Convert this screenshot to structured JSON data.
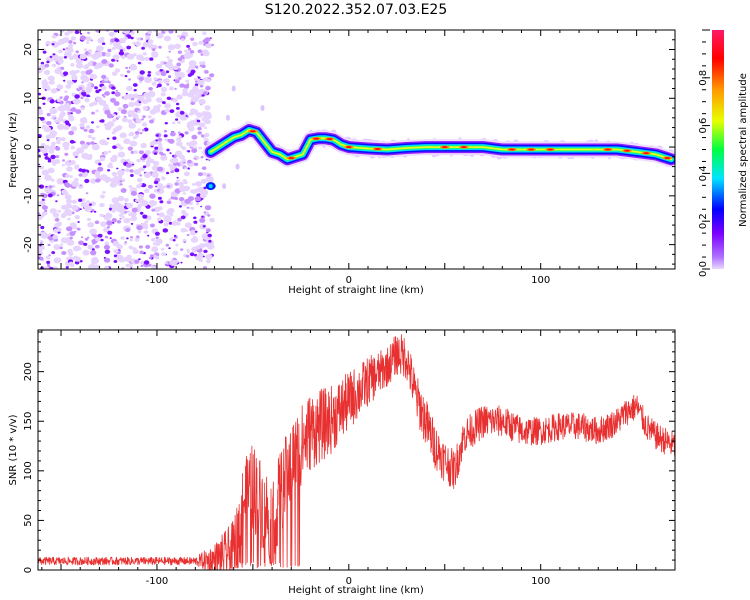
{
  "figure_title": "S120.2022.352.07.03.E25",
  "chart_data": [
    {
      "type": "heatmap",
      "xlabel": "Height of straight line (km)",
      "ylabel": "Frequency (Hz)",
      "xlim": [
        -162,
        170
      ],
      "ylim": [
        -25,
        24
      ],
      "xticks": [
        -100,
        0,
        100
      ],
      "yticks": [
        -20,
        -10,
        0,
        10,
        20
      ],
      "noise_region_x": [
        -162,
        -73
      ],
      "ridge": {
        "x": [
          -72,
          -68,
          -64,
          -60,
          -56,
          -52,
          -48,
          -44,
          -40,
          -36,
          -32,
          -28,
          -24,
          -20,
          -16,
          -12,
          -8,
          -4,
          0,
          10,
          20,
          30,
          40,
          50,
          60,
          70,
          80,
          90,
          100,
          110,
          120,
          130,
          140,
          150,
          160,
          168
        ],
        "frequency": [
          -1,
          0,
          1,
          2,
          2.5,
          3.5,
          3,
          1,
          -1,
          -1.5,
          -2.5,
          -2,
          -1.5,
          1.5,
          1.8,
          1.8,
          1.5,
          0.5,
          0,
          -0.3,
          -0.5,
          -0.2,
          0,
          0,
          0,
          0,
          -0.5,
          -0.5,
          -0.5,
          -0.5,
          -0.5,
          -0.5,
          -0.5,
          -1,
          -1.5,
          -2.5
        ]
      },
      "colorbar": {
        "label": "Normalized spectral amplitude",
        "ticks": [
          "0.0",
          "0.2",
          "0.4",
          "0.6",
          "0.8"
        ],
        "range": [
          0,
          1
        ],
        "colors": [
          "#e8d8ff",
          "#7a00ff",
          "#0000ff",
          "#00e5ff",
          "#00ff40",
          "#e8ff00",
          "#ff9900",
          "#ff0000",
          "#ff1a66"
        ]
      }
    },
    {
      "type": "line",
      "xlabel": "Height of straight line (km)",
      "ylabel": "SNR (10 * v/v)",
      "xlim": [
        -162,
        170
      ],
      "ylim": [
        0,
        242
      ],
      "xticks": [
        -100,
        0,
        100
      ],
      "yticks": [
        0,
        50,
        100,
        150,
        200
      ],
      "color": "#e83030",
      "envelope": {
        "x": [
          -162,
          -140,
          -120,
          -100,
          -80,
          -70,
          -60,
          -55,
          -50,
          -45,
          -40,
          -30,
          -20,
          -10,
          0,
          10,
          20,
          25,
          30,
          35,
          40,
          45,
          50,
          55,
          60,
          70,
          80,
          90,
          100,
          110,
          120,
          130,
          140,
          145,
          150,
          155,
          160,
          165,
          170
        ],
        "values": [
          9,
          9,
          9,
          9,
          9,
          10,
          20,
          70,
          85,
          65,
          50,
          110,
          140,
          150,
          170,
          190,
          205,
          218,
          215,
          175,
          150,
          125,
          110,
          100,
          135,
          150,
          150,
          140,
          140,
          145,
          145,
          140,
          150,
          160,
          165,
          145,
          135,
          130,
          125
        ]
      },
      "noise_amplitude": {
        "x": [
          -162,
          -80,
          -60,
          -50,
          -40,
          -20,
          0,
          20,
          40,
          60,
          100,
          170
        ],
        "values": [
          4,
          4,
          30,
          45,
          45,
          40,
          30,
          20,
          25,
          18,
          14,
          14
        ]
      }
    }
  ]
}
